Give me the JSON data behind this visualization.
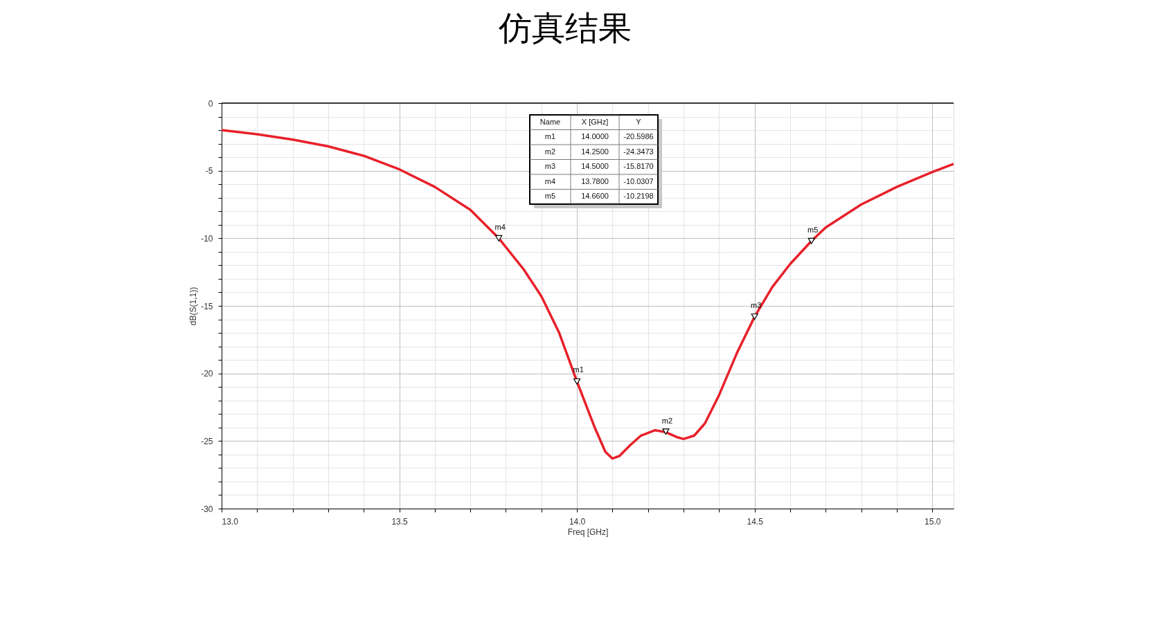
{
  "chart_data": {
    "type": "line",
    "title": "仿真结果",
    "xlabel": "Freq [GHz]",
    "ylabel": "dB(S(1,1))",
    "x": [
      13.0,
      13.1,
      13.2,
      13.3,
      13.4,
      13.5,
      13.6,
      13.7,
      13.78,
      13.85,
      13.9,
      13.95,
      14.0,
      14.05,
      14.08,
      14.1,
      14.12,
      14.15,
      14.18,
      14.22,
      14.25,
      14.28,
      14.3,
      14.33,
      14.36,
      14.4,
      14.45,
      14.5,
      14.55,
      14.6,
      14.66,
      14.7,
      14.8,
      14.9,
      15.0,
      15.06
    ],
    "series": [
      {
        "color": "#e8202a",
        "values": [
          -2.0,
          -2.3,
          -2.7,
          -3.2,
          -3.9,
          -4.9,
          -6.2,
          -7.9,
          -10.0,
          -12.3,
          -14.3,
          -17.0,
          -20.6,
          -24.0,
          -25.8,
          -26.3,
          -26.1,
          -25.3,
          -24.6,
          -24.2,
          -24.35,
          -24.7,
          -24.85,
          -24.6,
          -23.7,
          -21.6,
          -18.5,
          -15.8,
          -13.6,
          -11.9,
          -10.2,
          -9.2,
          -7.5,
          -6.2,
          -5.1,
          -4.5
        ]
      },
      {
        "type": "scatter",
        "color": "#000000",
        "marker": "triangle",
        "x": [
          14.0,
          14.25,
          14.5,
          13.78,
          14.66
        ],
        "values": [
          -20.6,
          -24.3,
          -15.8,
          -10.0,
          -10.2
        ]
      }
    ],
    "xlim": [
      13.0,
      15.06
    ],
    "ylim": [
      -30,
      0
    ],
    "xticks": [
      {
        "value": 13.0,
        "label": "13.0"
      },
      {
        "value": 13.1,
        "label": null
      },
      {
        "value": 13.2,
        "label": null
      },
      {
        "value": 13.3,
        "label": null
      },
      {
        "value": 13.4,
        "label": null
      },
      13.5,
      {
        "value": 13.6,
        "label": null
      },
      {
        "value": 13.7,
        "label": null
      },
      {
        "value": 13.8,
        "label": null
      },
      {
        "value": 13.9,
        "label": null
      },
      {
        "value": 14.0,
        "label": "14.0"
      },
      {
        "value": 14.1,
        "label": null
      },
      {
        "value": 14.2,
        "label": null
      },
      {
        "value": 14.3,
        "label": null
      },
      {
        "value": 14.4,
        "label": null
      },
      14.5,
      {
        "value": 14.6,
        "label": null
      },
      {
        "value": 14.7,
        "label": null
      },
      {
        "value": 14.8,
        "label": null
      },
      {
        "value": 14.9,
        "label": null
      },
      {
        "value": 15.0,
        "label": "15.0"
      }
    ],
    "yticks": [
      -30,
      {
        "value": -29,
        "label": null
      },
      {
        "value": -28,
        "label": null
      },
      {
        "value": -27,
        "label": null
      },
      {
        "value": -26,
        "label": null
      },
      -25,
      {
        "value": -24,
        "label": null
      },
      {
        "value": -23,
        "label": null
      },
      {
        "value": -22,
        "label": null
      },
      {
        "value": -21,
        "label": null
      },
      -20,
      {
        "value": -19,
        "label": null
      },
      {
        "value": -18,
        "label": null
      },
      {
        "value": -17,
        "label": null
      },
      {
        "value": -16,
        "label": null
      },
      -15,
      {
        "value": -14,
        "label": null
      },
      {
        "value": -13,
        "label": null
      },
      {
        "value": -12,
        "label": null
      },
      {
        "value": -11,
        "label": null
      },
      -10,
      {
        "value": -9,
        "label": null
      },
      {
        "value": -8,
        "label": null
      },
      {
        "value": -7,
        "label": null
      },
      {
        "value": -6,
        "label": null
      },
      -5,
      {
        "value": -4,
        "label": null
      },
      {
        "value": -3,
        "label": null
      },
      {
        "value": -2,
        "label": null
      },
      {
        "value": -1,
        "label": null
      },
      0
    ],
    "grid": true,
    "marker": "none",
    "line_style": "solid",
    "annotations": [
      {
        "text": "m1",
        "x": 14.0,
        "y": -20.5986
      },
      {
        "text": "m2",
        "x": 14.25,
        "y": -24.3473
      },
      {
        "text": "m3",
        "x": 14.5,
        "y": -15.817
      },
      {
        "text": "m4",
        "x": 13.78,
        "y": -10.0307
      },
      {
        "text": "m5",
        "x": 14.66,
        "y": -10.2198
      },
      "Name",
      "X [GHz]",
      "Y",
      "m1",
      "14.0000",
      "-20.5986",
      "m2",
      "14.2500",
      "-24.3473",
      "m3",
      "14.5000",
      "-15.8170",
      "m4",
      "13.7800",
      "-10.0307",
      "m5",
      "14.6600",
      "-10.2198"
    ]
  }
}
